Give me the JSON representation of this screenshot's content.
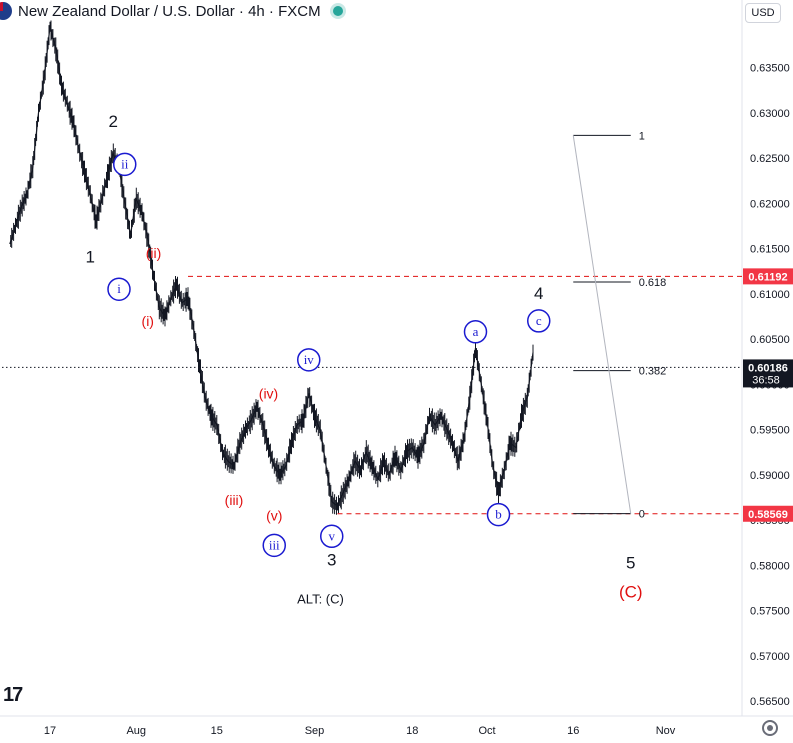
{
  "header": {
    "title": "New Zealand Dollar / U.S. Dollar · 4h · FXCM",
    "currency": "USD"
  },
  "colors": {
    "blue": "#1a1ad0",
    "red": "#e01010",
    "black": "#131722",
    "badge_red": "#f23645",
    "badge_dark": "#131722",
    "grid_text": "#131722"
  },
  "chart_data": {
    "type": "line",
    "instrument": "NZD/USD",
    "timeframe": "4h",
    "x_ticks": [
      "17",
      "Aug",
      "15",
      "Sep",
      "18",
      "Oct",
      "16",
      "Nov"
    ],
    "y_ticks": [
      "0.63500",
      "0.63000",
      "0.62500",
      "0.62000",
      "0.61500",
      "0.61000",
      "0.60500",
      "0.60000",
      "0.59500",
      "0.59000",
      "0.58500",
      "0.58000",
      "0.57500",
      "0.57000",
      "0.56500"
    ],
    "ylim": [
      0.5635,
      0.6425
    ],
    "price_series": [
      {
        "d": "Jul 10",
        "v": 0.6155
      },
      {
        "d": "Jul 11",
        "v": 0.6175
      },
      {
        "d": "Jul 12",
        "v": 0.6195
      },
      {
        "d": "Jul 13",
        "v": 0.621
      },
      {
        "d": "Jul 14",
        "v": 0.624
      },
      {
        "d": "Jul 15",
        "v": 0.63
      },
      {
        "d": "Jul 16",
        "v": 0.634
      },
      {
        "d": "Jul 17",
        "v": 0.6395
      },
      {
        "d": "Jul 18",
        "v": 0.637
      },
      {
        "d": "Jul 19",
        "v": 0.633
      },
      {
        "d": "Jul 20",
        "v": 0.631
      },
      {
        "d": "Jul 21",
        "v": 0.629
      },
      {
        "d": "Jul 22",
        "v": 0.626
      },
      {
        "d": "Jul 23",
        "v": 0.6235
      },
      {
        "d": "Jul 24",
        "v": 0.621
      },
      {
        "d": "Jul 25",
        "v": 0.618
      },
      {
        "d": "Jul 26",
        "v": 0.6205
      },
      {
        "d": "Jul 27",
        "v": 0.623
      },
      {
        "d": "Jul 28",
        "v": 0.6255
      },
      {
        "d": "Jul 29",
        "v": 0.624
      },
      {
        "d": "Jul 30",
        "v": 0.62
      },
      {
        "d": "Jul 31",
        "v": 0.6165
      },
      {
        "d": "Aug 1",
        "v": 0.6205
      },
      {
        "d": "Aug 2",
        "v": 0.619
      },
      {
        "d": "Aug 3",
        "v": 0.616
      },
      {
        "d": "Aug 4",
        "v": 0.612
      },
      {
        "d": "Aug 5",
        "v": 0.6085
      },
      {
        "d": "Aug 6",
        "v": 0.6075
      },
      {
        "d": "Aug 7",
        "v": 0.6095
      },
      {
        "d": "Aug 8",
        "v": 0.611
      },
      {
        "d": "Aug 9",
        "v": 0.609
      },
      {
        "d": "Aug 10",
        "v": 0.6095
      },
      {
        "d": "Aug 11",
        "v": 0.606
      },
      {
        "d": "Aug 12",
        "v": 0.602
      },
      {
        "d": "Aug 13",
        "v": 0.5985
      },
      {
        "d": "Aug 14",
        "v": 0.5965
      },
      {
        "d": "Aug 15",
        "v": 0.5955
      },
      {
        "d": "Aug 16",
        "v": 0.5925
      },
      {
        "d": "Aug 17",
        "v": 0.5915
      },
      {
        "d": "Aug 18",
        "v": 0.591
      },
      {
        "d": "Aug 19",
        "v": 0.5935
      },
      {
        "d": "Aug 20",
        "v": 0.595
      },
      {
        "d": "Aug 21",
        "v": 0.596
      },
      {
        "d": "Aug 22",
        "v": 0.5975
      },
      {
        "d": "Aug 23",
        "v": 0.5955
      },
      {
        "d": "Aug 24",
        "v": 0.593
      },
      {
        "d": "Aug 25",
        "v": 0.591
      },
      {
        "d": "Aug 26",
        "v": 0.59
      },
      {
        "d": "Aug 27",
        "v": 0.591
      },
      {
        "d": "Aug 28",
        "v": 0.5935
      },
      {
        "d": "Aug 29",
        "v": 0.5955
      },
      {
        "d": "Aug 30",
        "v": 0.596
      },
      {
        "d": "Aug 31",
        "v": 0.599
      },
      {
        "d": "Sep 1",
        "v": 0.5965
      },
      {
        "d": "Sep 2",
        "v": 0.595
      },
      {
        "d": "Sep 3",
        "v": 0.591
      },
      {
        "d": "Sep 4",
        "v": 0.587
      },
      {
        "d": "Sep 5",
        "v": 0.5865
      },
      {
        "d": "Sep 6",
        "v": 0.588
      },
      {
        "d": "Sep 7",
        "v": 0.5895
      },
      {
        "d": "Sep 8",
        "v": 0.5915
      },
      {
        "d": "Sep 9",
        "v": 0.5905
      },
      {
        "d": "Sep 10",
        "v": 0.5925
      },
      {
        "d": "Sep 11",
        "v": 0.591
      },
      {
        "d": "Sep 12",
        "v": 0.5895
      },
      {
        "d": "Sep 13",
        "v": 0.5915
      },
      {
        "d": "Sep 14",
        "v": 0.59
      },
      {
        "d": "Sep 15",
        "v": 0.592
      },
      {
        "d": "Sep 16",
        "v": 0.5905
      },
      {
        "d": "Sep 17",
        "v": 0.5925
      },
      {
        "d": "Sep 18",
        "v": 0.593
      },
      {
        "d": "Sep 19",
        "v": 0.592
      },
      {
        "d": "Sep 20",
        "v": 0.5935
      },
      {
        "d": "Sep 21",
        "v": 0.5965
      },
      {
        "d": "Sep 22",
        "v": 0.5955
      },
      {
        "d": "Sep 23",
        "v": 0.5965
      },
      {
        "d": "Sep 24",
        "v": 0.595
      },
      {
        "d": "Sep 25",
        "v": 0.5935
      },
      {
        "d": "Sep 26",
        "v": 0.5915
      },
      {
        "d": "Sep 27",
        "v": 0.594
      },
      {
        "d": "Sep 28",
        "v": 0.5985
      },
      {
        "d": "Sep 29",
        "v": 0.604
      },
      {
        "d": "Sep 30",
        "v": 0.6
      },
      {
        "d": "Oct 1",
        "v": 0.596
      },
      {
        "d": "Oct 2",
        "v": 0.591
      },
      {
        "d": "Oct 3",
        "v": 0.588
      },
      {
        "d": "Oct 4",
        "v": 0.5905
      },
      {
        "d": "Oct 5",
        "v": 0.5935
      },
      {
        "d": "Oct 6",
        "v": 0.593
      },
      {
        "d": "Oct 7",
        "v": 0.5965
      },
      {
        "d": "Oct 8",
        "v": 0.5985
      },
      {
        "d": "Oct 9",
        "v": 0.6035
      }
    ],
    "price_lines": [
      {
        "value": 0.61192,
        "label": "0.61192",
        "style": "dashed",
        "color": "#e01010",
        "from": "Aug 10"
      },
      {
        "value": 0.58569,
        "label": "0.58569",
        "style": "dashed",
        "color": "#e01010",
        "from": "Sep 5"
      },
      {
        "value": 0.60186,
        "label": "0.60186",
        "sublabel": "36:58",
        "style": "dotted",
        "color": "#131722",
        "from": "Jul 1"
      }
    ],
    "fib_levels": [
      {
        "ratio": "1",
        "value": 0.6275
      },
      {
        "ratio": "0.618",
        "value": 0.6113
      },
      {
        "ratio": "0.382",
        "value": 0.6015
      },
      {
        "ratio": "0",
        "value": 0.5857
      }
    ],
    "fib_connector": {
      "from": {
        "d": "Oct 16",
        "v": 0.6275
      },
      "to": {
        "d": "Oct 26",
        "v": 0.5857
      }
    },
    "waves": [
      {
        "text": "2",
        "color": "black",
        "circle": false,
        "d": "Jul 28",
        "v": 0.629
      },
      {
        "text": "1",
        "color": "black",
        "circle": false,
        "d": "Jul 24",
        "v": 0.614
      },
      {
        "text": "ii",
        "color": "blue",
        "circle": true,
        "d": "Jul 30",
        "v": 0.6243
      },
      {
        "text": "i",
        "color": "blue",
        "circle": true,
        "d": "Jul 29",
        "v": 0.6105
      },
      {
        "text": "(ii)",
        "color": "red",
        "circle": false,
        "d": "Aug 4",
        "v": 0.6145
      },
      {
        "text": "(i)",
        "color": "red",
        "circle": false,
        "d": "Aug 3",
        "v": 0.607
      },
      {
        "text": "iv",
        "color": "blue",
        "circle": true,
        "d": "Aug 31",
        "v": 0.6027
      },
      {
        "text": "(iv)",
        "color": "red",
        "circle": false,
        "d": "Aug 24",
        "v": 0.599
      },
      {
        "text": "(iii)",
        "color": "red",
        "circle": false,
        "d": "Aug 18",
        "v": 0.5872
      },
      {
        "text": "(v)",
        "color": "red",
        "circle": false,
        "d": "Aug 25",
        "v": 0.5855
      },
      {
        "text": "iii",
        "color": "blue",
        "circle": true,
        "d": "Aug 25",
        "v": 0.5822
      },
      {
        "text": "v",
        "color": "blue",
        "circle": true,
        "d": "Sep 4",
        "v": 0.5832
      },
      {
        "text": "3",
        "color": "black",
        "circle": false,
        "d": "Sep 4",
        "v": 0.5805
      },
      {
        "text": "a",
        "color": "blue",
        "circle": true,
        "d": "Sep 29",
        "v": 0.6058
      },
      {
        "text": "b",
        "color": "blue",
        "circle": true,
        "d": "Oct 3",
        "v": 0.5856
      },
      {
        "text": "c",
        "color": "blue",
        "circle": true,
        "d": "Oct 10",
        "v": 0.607
      },
      {
        "text": "4",
        "color": "black",
        "circle": false,
        "d": "Oct 10",
        "v": 0.61
      },
      {
        "text": "5",
        "color": "black",
        "circle": false,
        "d": "Oct 26",
        "v": 0.5802
      },
      {
        "text": "(C)",
        "color": "red",
        "circle": false,
        "d": "Oct 26",
        "v": 0.577
      }
    ],
    "annotation": "ALT: (C)",
    "annotation_pos": {
      "d": "Sep 1",
      "v": 0.5763
    }
  }
}
